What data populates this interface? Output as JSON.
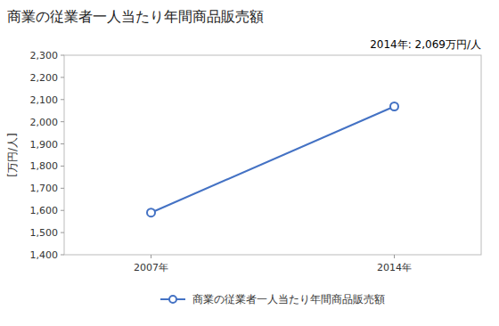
{
  "chart_data": {
    "type": "line",
    "title": "商業の従業者一人当たり年間商品販売額",
    "y_label": "[万円/人]",
    "annotation": "2014年: 2,069万円/人",
    "x": [
      2007,
      2014
    ],
    "xlim": [
      2004.5,
      2016.5
    ],
    "xticks": [
      {
        "value": 2007,
        "label": "2007年"
      },
      {
        "value": 2014,
        "label": "2014年"
      }
    ],
    "ylim": [
      1400,
      2300
    ],
    "yticks": [
      {
        "value": 1400,
        "label": "1,400"
      },
      {
        "value": 1500,
        "label": "1,500"
      },
      {
        "value": 1600,
        "label": "1,600"
      },
      {
        "value": 1700,
        "label": "1,700"
      },
      {
        "value": 1800,
        "label": "1,800"
      },
      {
        "value": 1900,
        "label": "1,900"
      },
      {
        "value": 2000,
        "label": "2,000"
      },
      {
        "value": 2100,
        "label": "2,100"
      },
      {
        "value": 2200,
        "label": "2,200"
      },
      {
        "value": 2300,
        "label": "2,300"
      }
    ],
    "series": [
      {
        "name": "商業の従業者一人当たり年間商品販売額",
        "color": "#4472C4",
        "marker": "circle",
        "values": [
          1590,
          2069
        ]
      }
    ],
    "grid": false,
    "legend": "bottom"
  }
}
